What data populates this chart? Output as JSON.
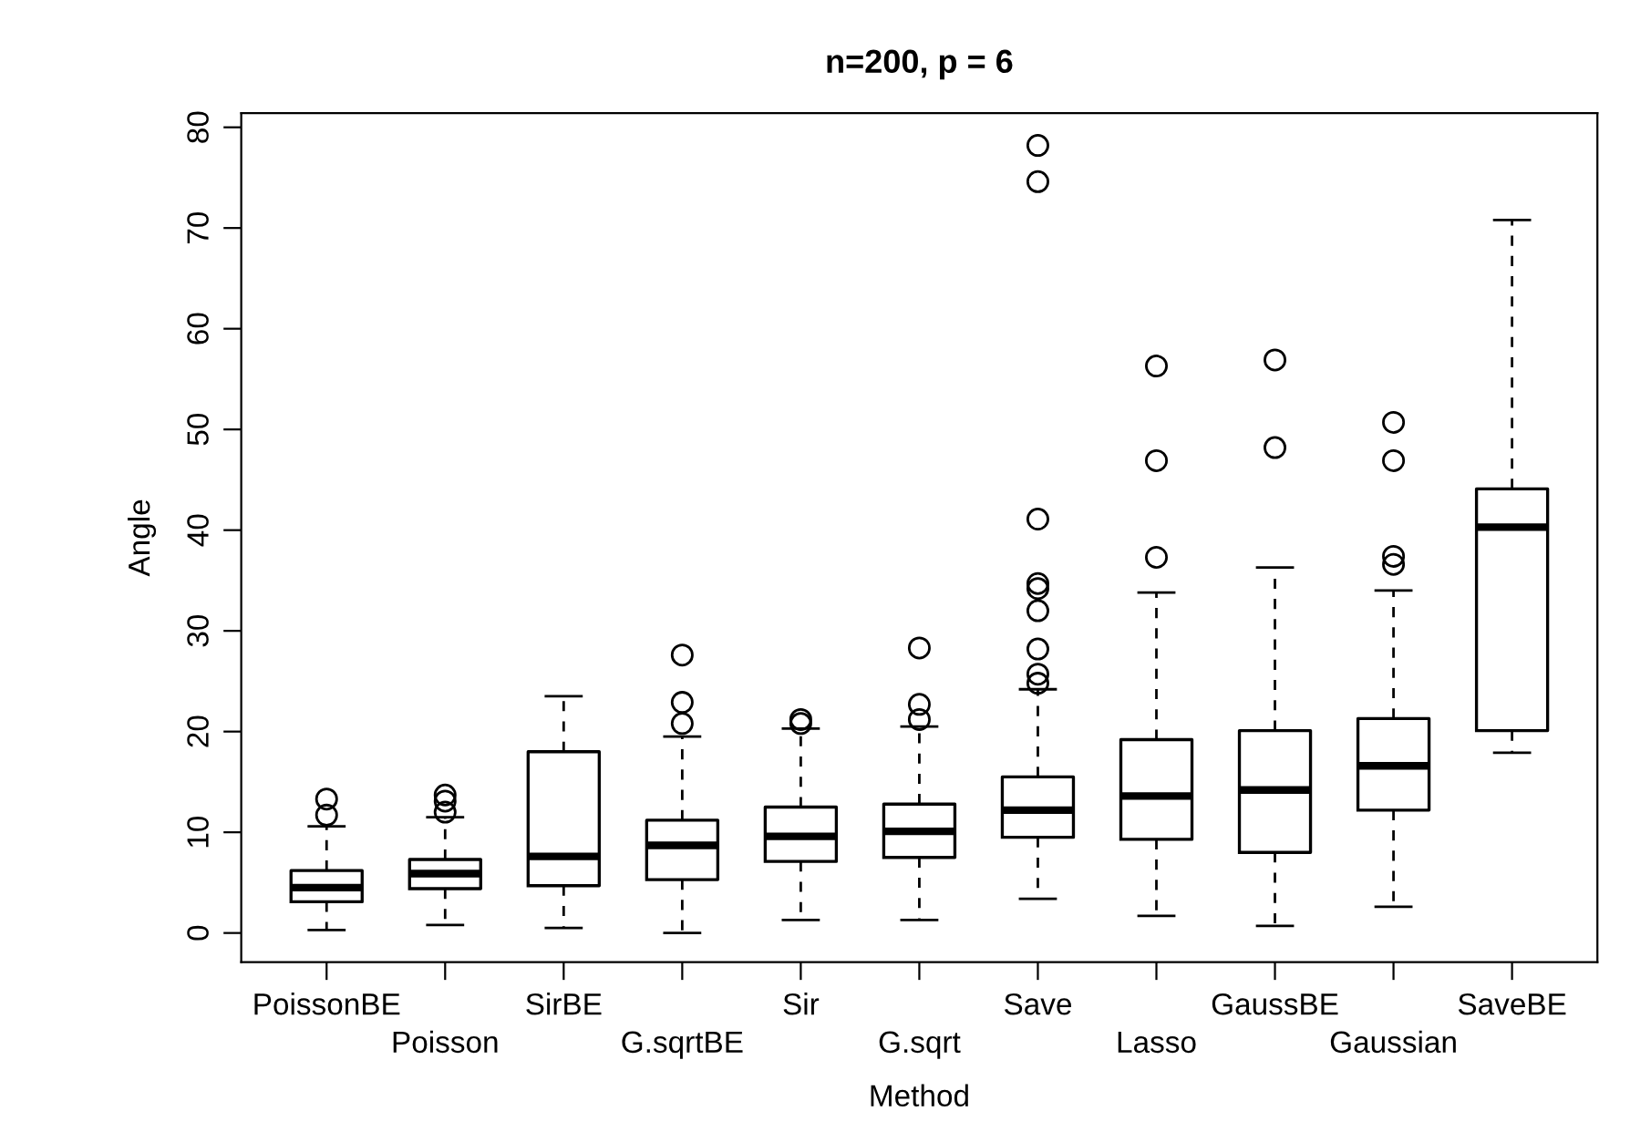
{
  "chart_data": {
    "type": "box",
    "title": "n=200, p = 6",
    "xlabel": "Method",
    "ylabel": "Angle",
    "categories": [
      "PoissonBE",
      "Poisson",
      "SirBE",
      "G.sqrtBE",
      "Sir",
      "G.sqrt",
      "Save",
      "Lasso",
      "GaussBE",
      "Gaussian",
      "SaveBE"
    ],
    "ylim": [
      -2.9,
      81.4
    ],
    "yticks": [
      0,
      10,
      20,
      30,
      40,
      50,
      60,
      70,
      80
    ],
    "grid": false,
    "boxes": [
      {
        "low": 0.3,
        "q1": 3.1,
        "median": 4.5,
        "q3": 6.2,
        "high": 10.6,
        "outliers": [
          11.7,
          13.3
        ]
      },
      {
        "low": 0.8,
        "q1": 4.4,
        "median": 5.9,
        "q3": 7.3,
        "high": 11.5,
        "outliers": [
          12.0,
          13.1,
          13.7
        ]
      },
      {
        "low": 0.5,
        "q1": 4.7,
        "median": 7.6,
        "q3": 18.0,
        "high": 23.5
      },
      {
        "low": 0.0,
        "q1": 5.3,
        "median": 8.7,
        "q3": 11.2,
        "high": 19.5,
        "outliers": [
          20.8,
          22.9,
          27.6
        ]
      },
      {
        "low": 1.3,
        "q1": 7.1,
        "median": 9.6,
        "q3": 12.5,
        "high": 20.3,
        "outliers": [
          20.8,
          21.2
        ]
      },
      {
        "low": 1.3,
        "q1": 7.5,
        "median": 10.1,
        "q3": 12.8,
        "high": 20.5,
        "outliers": [
          21.2,
          22.7,
          28.3
        ]
      },
      {
        "low": 3.4,
        "q1": 9.5,
        "median": 12.2,
        "q3": 15.5,
        "high": 24.2,
        "outliers": [
          24.8,
          25.7,
          28.2,
          32.0,
          34.2,
          34.7,
          41.1,
          74.6,
          78.2
        ]
      },
      {
        "low": 1.7,
        "q1": 9.3,
        "median": 13.6,
        "q3": 19.2,
        "high": 33.8,
        "outliers": [
          37.3,
          46.9,
          56.3
        ]
      },
      {
        "low": 0.7,
        "q1": 8.0,
        "median": 14.2,
        "q3": 20.1,
        "high": 36.3,
        "outliers": [
          48.2,
          56.9
        ]
      },
      {
        "low": 2.6,
        "q1": 12.2,
        "median": 16.6,
        "q3": 21.3,
        "high": 34.0,
        "outliers": [
          36.6,
          37.4,
          46.9,
          50.7
        ]
      },
      {
        "low": 17.9,
        "q1": 20.1,
        "median": 40.3,
        "q3": 44.1,
        "high": 70.8
      }
    ]
  }
}
